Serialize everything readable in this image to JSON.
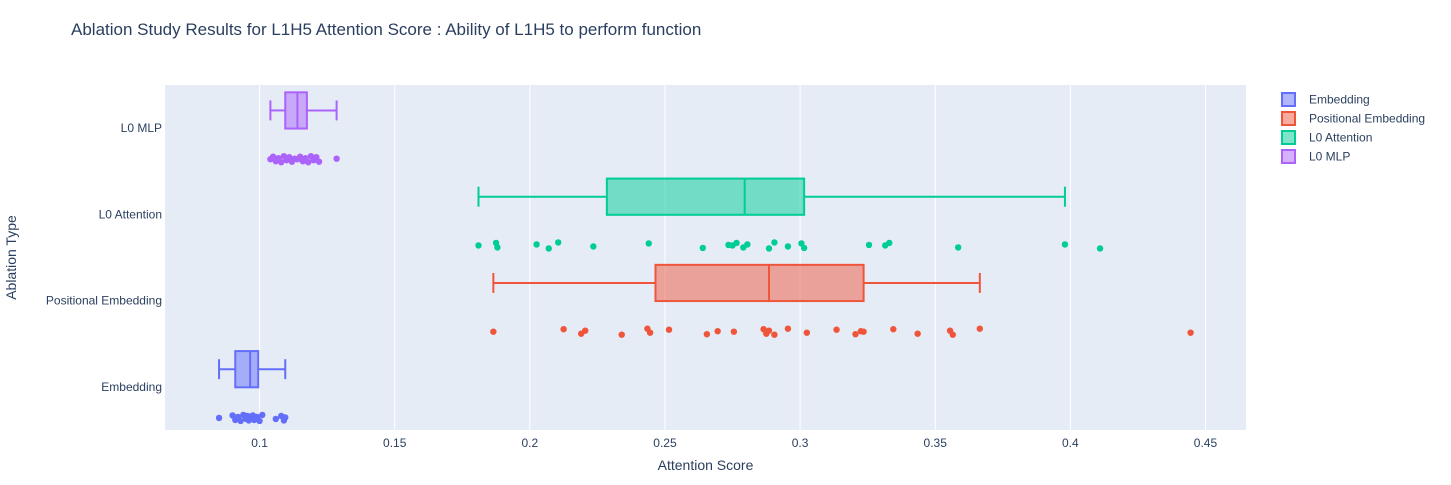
{
  "chart_data": {
    "type": "box",
    "orientation": "horizontal",
    "title": "Ablation Study Results for L1H5 Attention Score : Ability of L1H5 to perform function",
    "xlabel": "Attention Score",
    "ylabel": "Ablation Type",
    "xlim": [
      0.065,
      0.465
    ],
    "xticks": [
      0.1,
      0.15,
      0.2,
      0.25,
      0.3,
      0.35,
      0.4,
      0.45
    ],
    "xtick_labels": [
      "0.1",
      "0.15",
      "0.2",
      "0.25",
      "0.3",
      "0.35",
      "0.4",
      "0.45"
    ],
    "categories": [
      "Embedding",
      "Positional Embedding",
      "L0 Attention",
      "L0 MLP"
    ],
    "grid": true,
    "legend_position": "top-right",
    "series": [
      {
        "name": "Embedding",
        "color": "#636efa",
        "box": {
          "min": 0.085,
          "q1": 0.091,
          "median": 0.0965,
          "q3": 0.0995,
          "max": 0.1095
        },
        "points": [
          0.085,
          0.09,
          0.091,
          0.092,
          0.093,
          0.094,
          0.095,
          0.0955,
          0.096,
          0.0965,
          0.097,
          0.0975,
          0.098,
          0.099,
          0.1,
          0.101,
          0.106,
          0.108,
          0.109,
          0.1095
        ]
      },
      {
        "name": "Positional Embedding",
        "color": "#ef553b",
        "box": {
          "min": 0.1865,
          "q1": 0.2465,
          "median": 0.2885,
          "q3": 0.3235,
          "max": 0.3665
        },
        "points": [
          0.1865,
          0.2125,
          0.219,
          0.2205,
          0.234,
          0.2435,
          0.2445,
          0.2515,
          0.2655,
          0.2695,
          0.2755,
          0.2865,
          0.2875,
          0.2885,
          0.2905,
          0.2955,
          0.3025,
          0.3135,
          0.3205,
          0.3225,
          0.3235,
          0.3345,
          0.3435,
          0.3555,
          0.3565,
          0.3665,
          0.4445
        ]
      },
      {
        "name": "L0 Attention",
        "color": "#00cc96",
        "box": {
          "min": 0.181,
          "q1": 0.2285,
          "median": 0.2795,
          "q3": 0.3015,
          "max": 0.398
        },
        "points": [
          0.181,
          0.1875,
          0.188,
          0.2025,
          0.207,
          0.2105,
          0.2235,
          0.244,
          0.264,
          0.2735,
          0.275,
          0.2765,
          0.279,
          0.2805,
          0.2885,
          0.2905,
          0.2955,
          0.3005,
          0.3015,
          0.3255,
          0.3315,
          0.333,
          0.3585,
          0.398,
          0.411
        ]
      },
      {
        "name": "L0 MLP",
        "color": "#ab63fa",
        "box": {
          "min": 0.104,
          "q1": 0.1095,
          "median": 0.114,
          "q3": 0.1175,
          "max": 0.1285
        },
        "points": [
          0.104,
          0.105,
          0.106,
          0.107,
          0.108,
          0.109,
          0.11,
          0.111,
          0.112,
          0.113,
          0.114,
          0.115,
          0.116,
          0.117,
          0.118,
          0.119,
          0.12,
          0.121,
          0.122,
          0.1285
        ]
      }
    ]
  }
}
